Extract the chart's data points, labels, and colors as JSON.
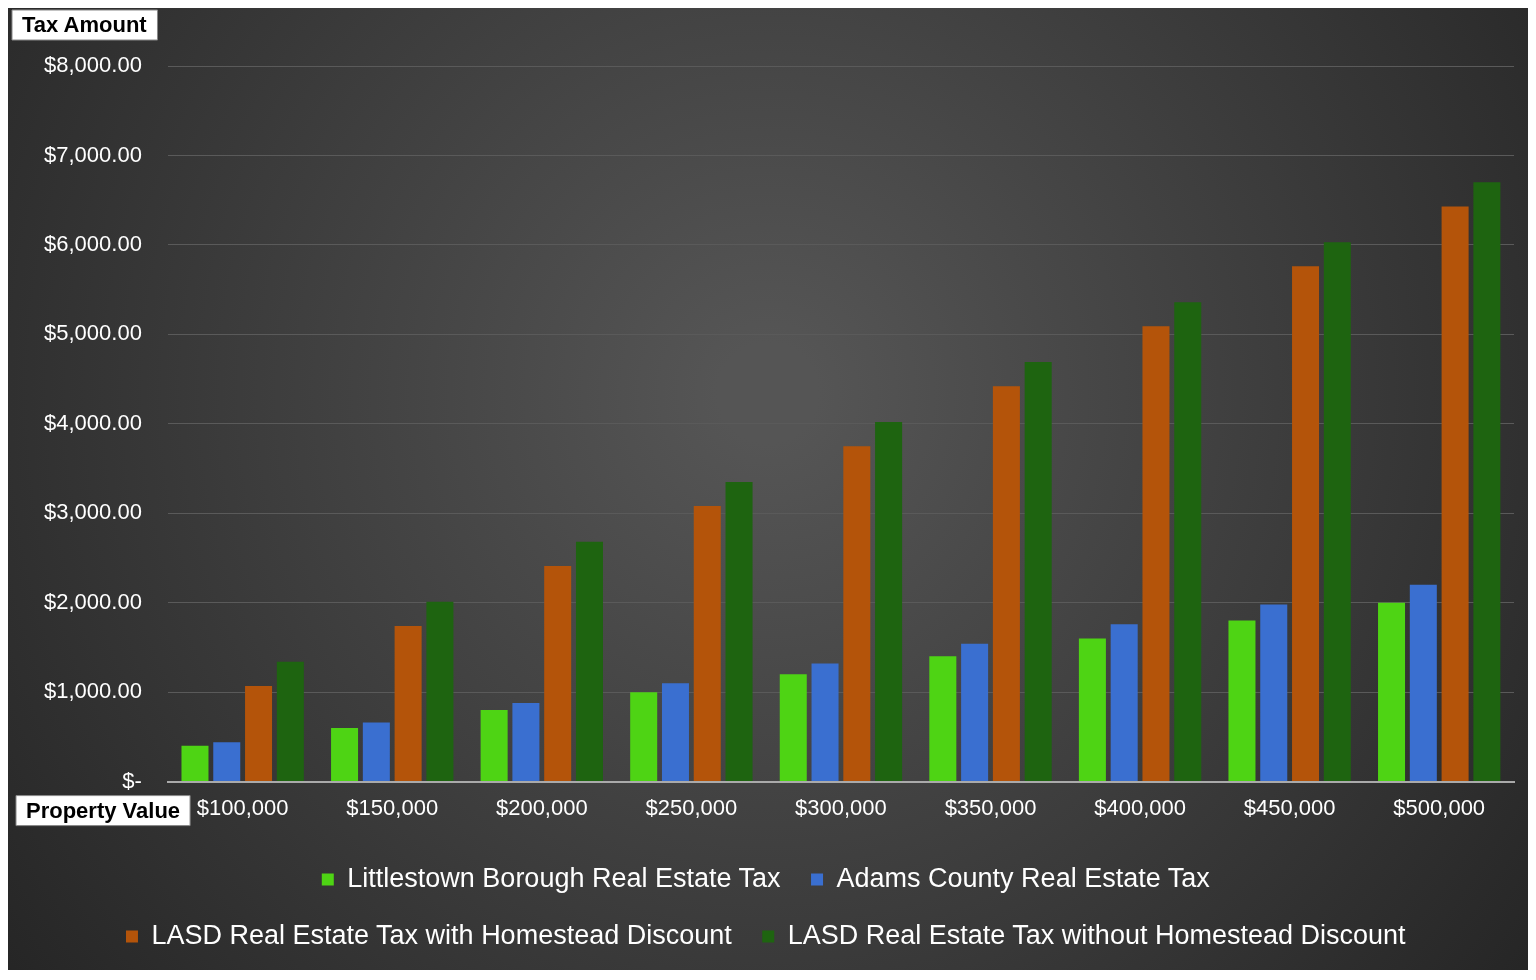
{
  "chart_data": {
    "type": "bar",
    "xlabel": "Property Value",
    "ylabel": "Tax Amount",
    "categories": [
      "$100,000",
      "$150,000",
      "$200,000",
      "$250,000",
      "$300,000",
      "$350,000",
      "$400,000",
      "$450,000",
      "$500,000"
    ],
    "series": [
      {
        "name": "Littlestown Borough Real Estate Tax",
        "color": "#4ed414",
        "values": [
          400,
          600,
          800,
          1000,
          1200,
          1400,
          1600,
          1800,
          2000
        ]
      },
      {
        "name": "Adams County Real Estate Tax",
        "color": "#3a6fd0",
        "values": [
          440,
          660,
          880,
          1100,
          1320,
          1540,
          1760,
          1980,
          2200
        ]
      },
      {
        "name": "LASD Real Estate Tax with Homestead Discount",
        "color": "#b4540a",
        "values": [
          1070,
          1740,
          2410,
          3080,
          3750,
          4420,
          5090,
          5760,
          6430
        ]
      },
      {
        "name": "LASD Real Estate Tax without Homestead Discount",
        "color": "#1e6410",
        "values": [
          1340,
          2010,
          2680,
          3350,
          4020,
          4690,
          5360,
          6030,
          6700
        ]
      }
    ],
    "ylim": [
      0,
      8000
    ],
    "yticks": [
      {
        "value": 0,
        "label": "$-"
      },
      {
        "value": 1000,
        "label": "$1,000.00"
      },
      {
        "value": 2000,
        "label": "$2,000.00"
      },
      {
        "value": 3000,
        "label": "$3,000.00"
      },
      {
        "value": 4000,
        "label": "$4,000.00"
      },
      {
        "value": 5000,
        "label": "$5,000.00"
      },
      {
        "value": 6000,
        "label": "$6,000.00"
      },
      {
        "value": 7000,
        "label": "$7,000.00"
      },
      {
        "value": 8000,
        "label": "$8,000.00"
      }
    ],
    "grid": "y",
    "legend": "bottom"
  }
}
